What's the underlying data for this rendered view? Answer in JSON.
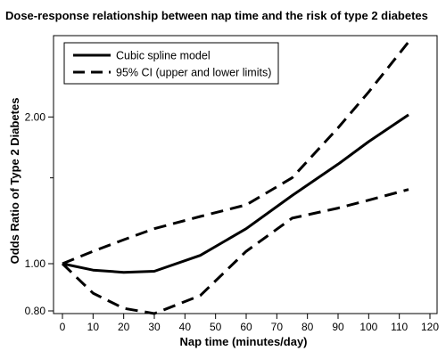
{
  "chart_data": {
    "type": "line",
    "title": "Dose-response relationship between nap time and the risk of type 2 diabetes",
    "xlabel": "Nap time (minutes/day)",
    "ylabel": "Odds Ratio of Type 2 Diabetes",
    "xlim": [
      0,
      120
    ],
    "x_ticks": [
      0,
      10,
      20,
      30,
      40,
      50,
      60,
      70,
      80,
      90,
      100,
      110,
      120
    ],
    "y_scale": "log",
    "y_ticks": [
      0.8,
      1.0,
      2.0
    ],
    "y_tick_labels": [
      "0.80",
      "1.00",
      "2.00"
    ],
    "ylim": [
      0.79,
      2.9
    ],
    "grid": false,
    "legend_position": "top-left",
    "series": [
      {
        "name": "Cubic spline model",
        "style": "solid",
        "x": [
          0,
          10,
          20,
          30,
          45,
          60,
          75,
          90,
          100,
          113
        ],
        "y": [
          1.0,
          0.97,
          0.96,
          0.965,
          1.04,
          1.18,
          1.38,
          1.6,
          1.78,
          2.02
        ]
      },
      {
        "name": "95% CI (upper and lower limits)",
        "style": "dashed",
        "x": [
          0,
          10,
          20,
          30,
          45,
          60,
          75,
          90,
          100,
          113
        ],
        "y": [
          1.0,
          1.06,
          1.12,
          1.18,
          1.25,
          1.32,
          1.5,
          1.9,
          2.25,
          2.85
        ]
      },
      {
        "name": "",
        "style": "dashed",
        "x": [
          0,
          10,
          20,
          30,
          45,
          60,
          75,
          90,
          100,
          113
        ],
        "y": [
          1.0,
          0.87,
          0.81,
          0.79,
          0.86,
          1.06,
          1.24,
          1.3,
          1.35,
          1.42
        ]
      }
    ],
    "colors": {
      "line": "#000000",
      "axis": "#000000"
    }
  }
}
